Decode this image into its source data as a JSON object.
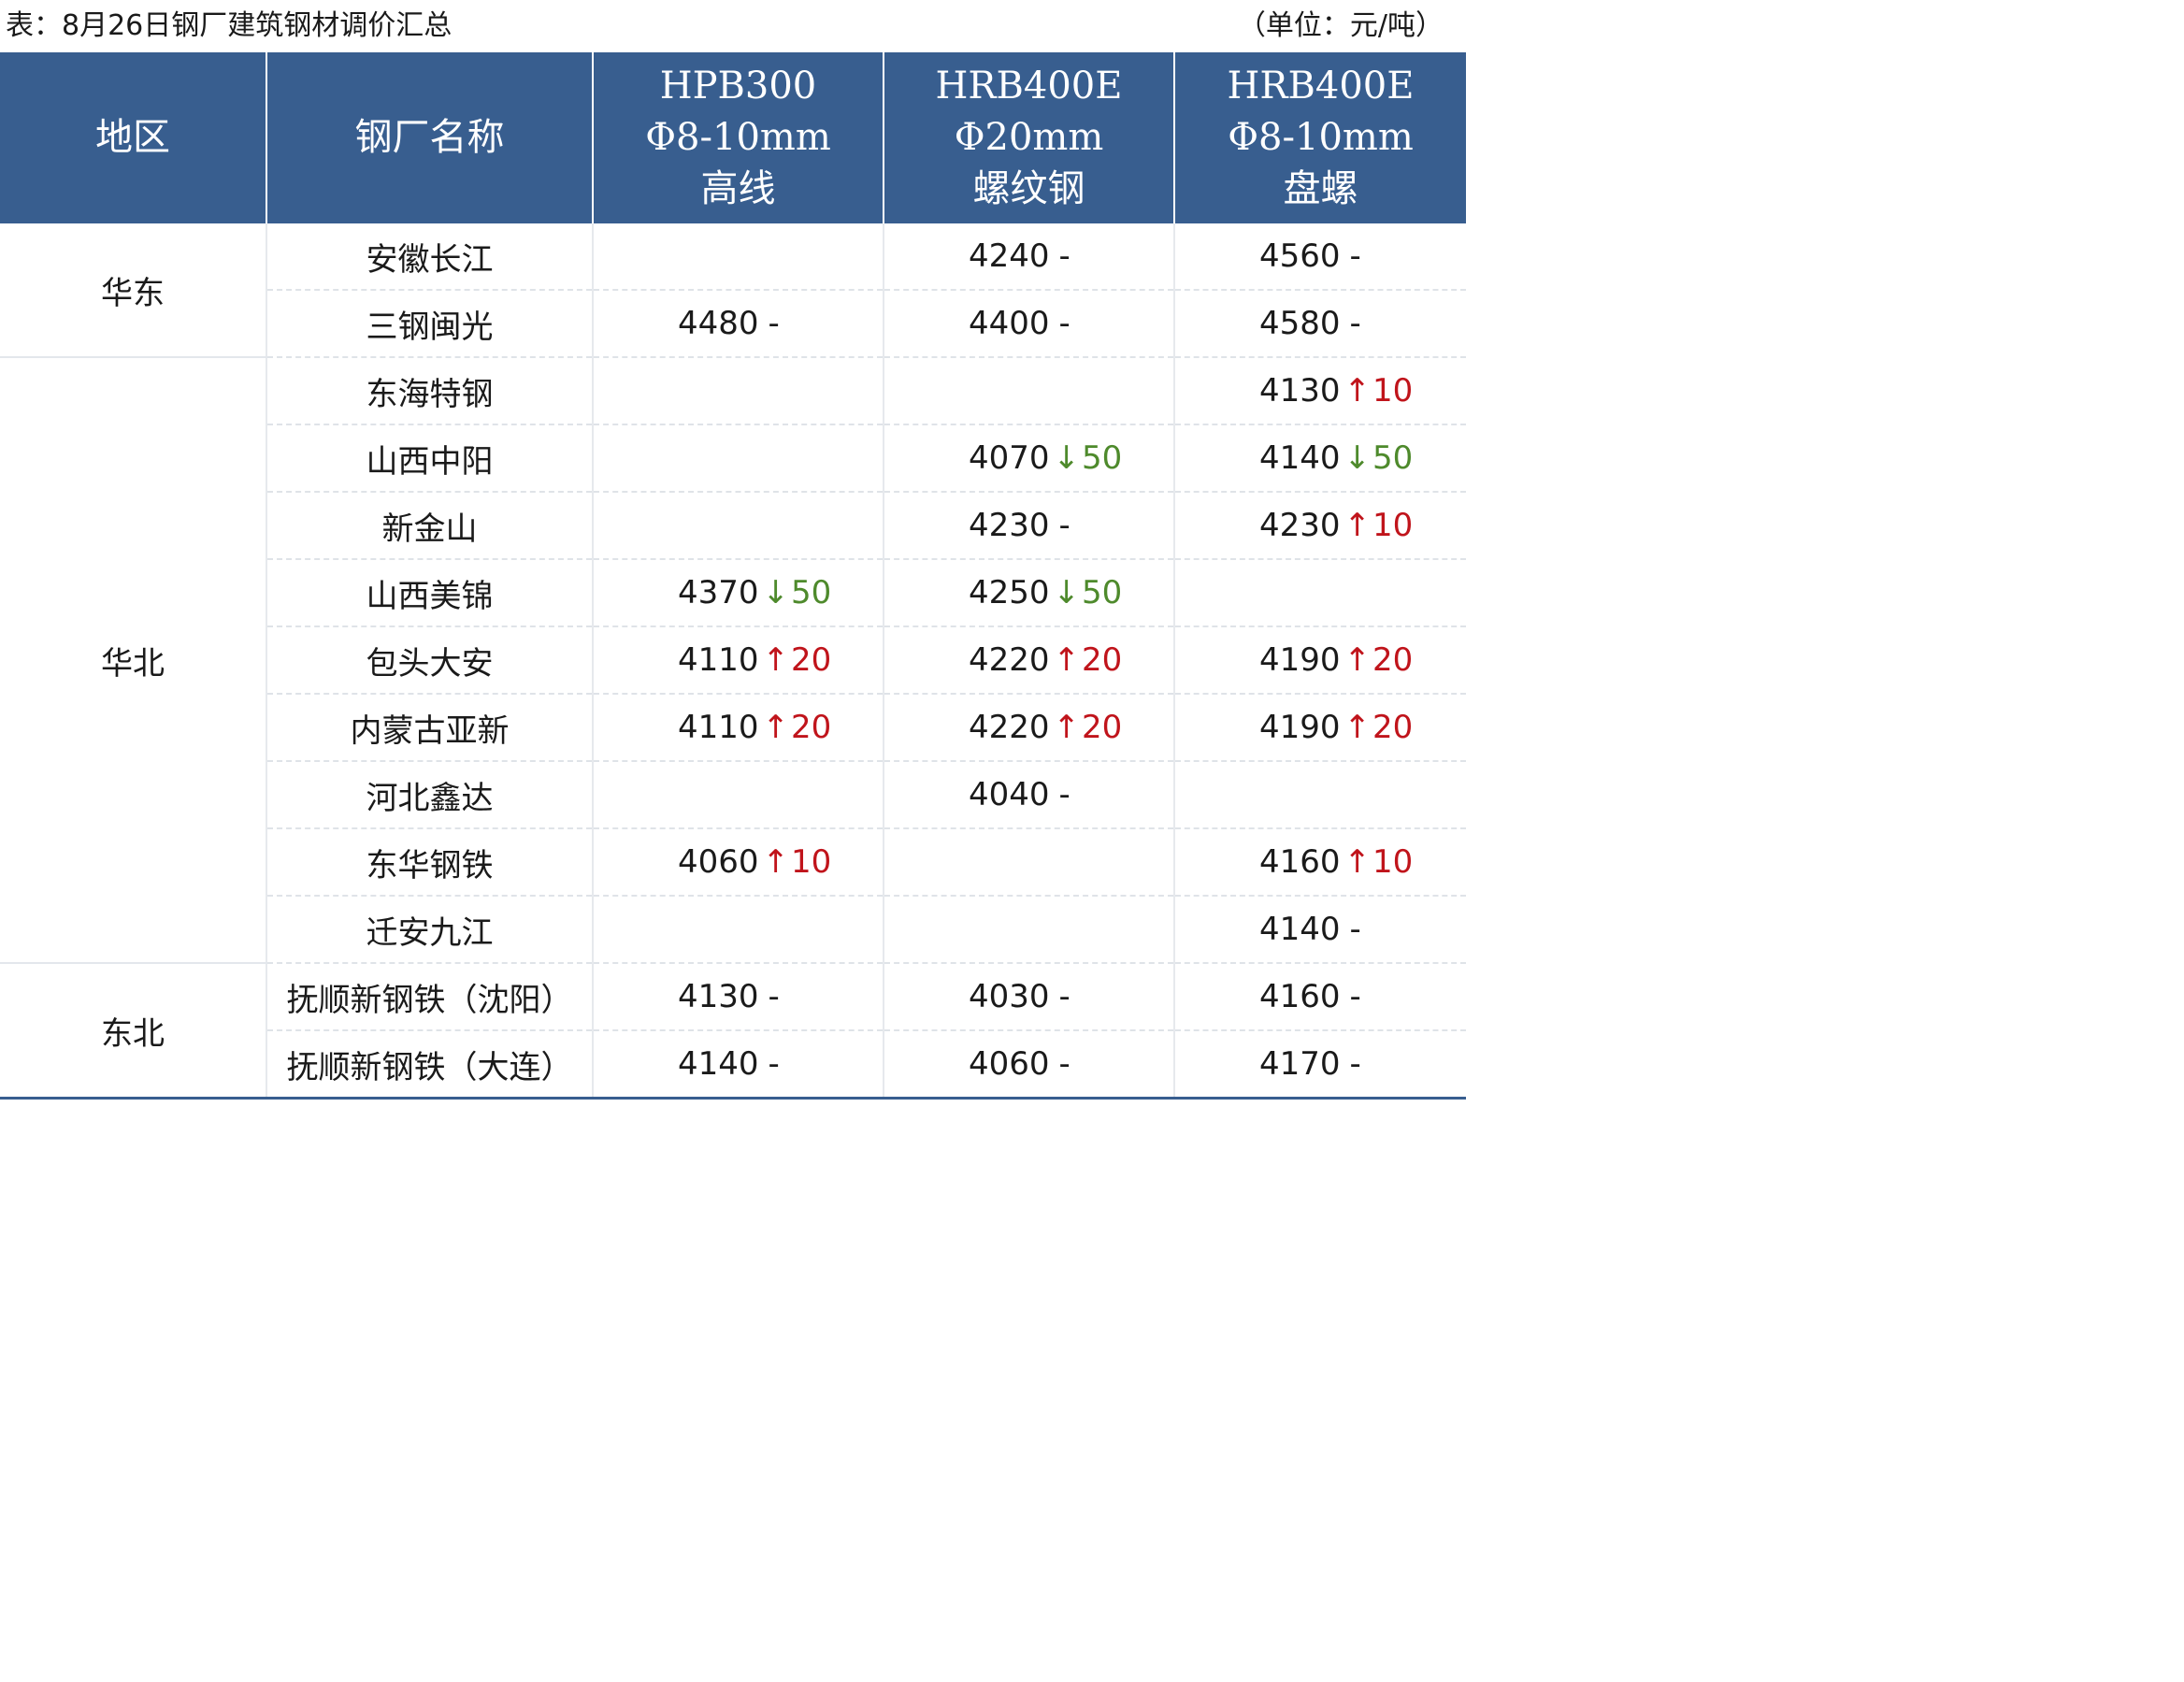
{
  "caption": {
    "title": "表：8月26日钢厂建筑钢材调价汇总",
    "unit": "（单位：元/吨）"
  },
  "colors": {
    "header_bg": "#385e8f",
    "up": "#c0141b",
    "down": "#4e8a2c"
  },
  "header": {
    "region": "地区",
    "mill": "钢厂名称",
    "p1": [
      "HPB300",
      "Φ8-10mm",
      "高线"
    ],
    "p2": [
      "HRB400E",
      "Φ20mm",
      "螺纹钢"
    ],
    "p3": [
      "HRB400E",
      "Φ8-10mm",
      "盘螺"
    ]
  },
  "regions": [
    {
      "name": "华东",
      "rows": [
        {
          "mill": "安徽长江",
          "p1": null,
          "p2": {
            "price": "4240",
            "dir": "flat",
            "change": "-"
          },
          "p3": {
            "price": "4560",
            "dir": "flat",
            "change": "-"
          }
        },
        {
          "mill": "三钢闽光",
          "p1": {
            "price": "4480",
            "dir": "flat",
            "change": "-"
          },
          "p2": {
            "price": "4400",
            "dir": "flat",
            "change": "-"
          },
          "p3": {
            "price": "4580",
            "dir": "flat",
            "change": "-"
          }
        }
      ]
    },
    {
      "name": "华北",
      "rows": [
        {
          "mill": "东海特钢",
          "p1": null,
          "p2": null,
          "p3": {
            "price": "4130",
            "dir": "up",
            "change": "10"
          }
        },
        {
          "mill": "山西中阳",
          "p1": null,
          "p2": {
            "price": "4070",
            "dir": "down",
            "change": "50"
          },
          "p3": {
            "price": "4140",
            "dir": "down",
            "change": "50"
          }
        },
        {
          "mill": "新金山",
          "p1": null,
          "p2": {
            "price": "4230",
            "dir": "flat",
            "change": "-"
          },
          "p3": {
            "price": "4230",
            "dir": "up",
            "change": "10"
          }
        },
        {
          "mill": "山西美锦",
          "p1": {
            "price": "4370",
            "dir": "down",
            "change": "50"
          },
          "p2": {
            "price": "4250",
            "dir": "down",
            "change": "50"
          },
          "p3": null
        },
        {
          "mill": "包头大安",
          "p1": {
            "price": "4110",
            "dir": "up",
            "change": "20"
          },
          "p2": {
            "price": "4220",
            "dir": "up",
            "change": "20"
          },
          "p3": {
            "price": "4190",
            "dir": "up",
            "change": "20"
          }
        },
        {
          "mill": "内蒙古亚新",
          "p1": {
            "price": "4110",
            "dir": "up",
            "change": "20"
          },
          "p2": {
            "price": "4220",
            "dir": "up",
            "change": "20"
          },
          "p3": {
            "price": "4190",
            "dir": "up",
            "change": "20"
          }
        },
        {
          "mill": "河北鑫达",
          "p1": null,
          "p2": {
            "price": "4040",
            "dir": "flat",
            "change": "-"
          },
          "p3": null
        },
        {
          "mill": "东华钢铁",
          "p1": {
            "price": "4060",
            "dir": "up",
            "change": "10"
          },
          "p2": null,
          "p3": {
            "price": "4160",
            "dir": "up",
            "change": "10"
          }
        },
        {
          "mill": "迁安九江",
          "p1": null,
          "p2": null,
          "p3": {
            "price": "4140",
            "dir": "flat",
            "change": "-"
          }
        }
      ]
    },
    {
      "name": "东北",
      "rows": [
        {
          "mill": "抚顺新钢铁（沈阳）",
          "p1": {
            "price": "4130",
            "dir": "flat",
            "change": "-"
          },
          "p2": {
            "price": "4030",
            "dir": "flat",
            "change": "-"
          },
          "p3": {
            "price": "4160",
            "dir": "flat",
            "change": "-"
          }
        },
        {
          "mill": "抚顺新钢铁（大连）",
          "p1": {
            "price": "4140",
            "dir": "flat",
            "change": "-"
          },
          "p2": {
            "price": "4060",
            "dir": "flat",
            "change": "-"
          },
          "p3": {
            "price": "4170",
            "dir": "flat",
            "change": "-"
          }
        }
      ]
    }
  ]
}
